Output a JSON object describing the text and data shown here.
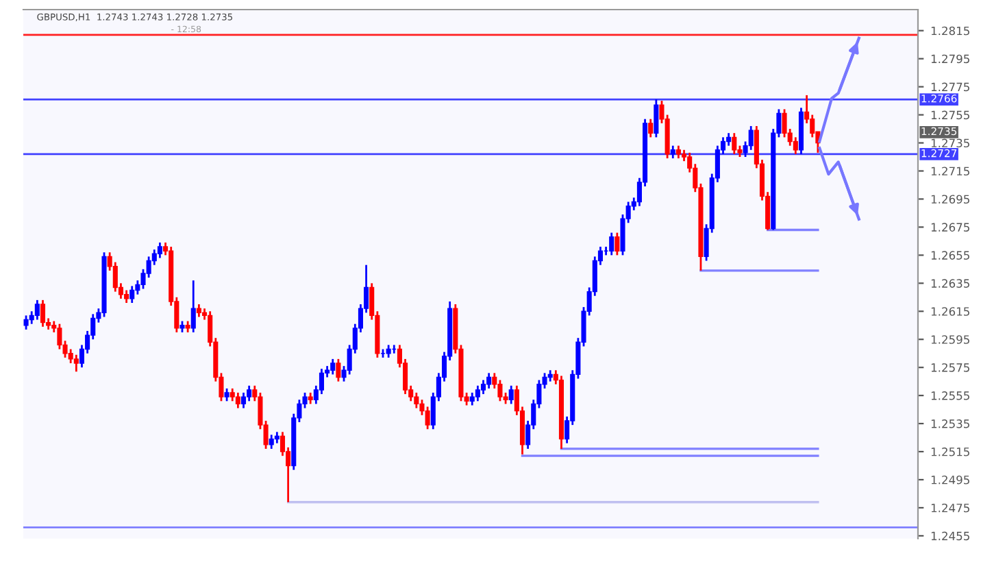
{
  "chart_data": {
    "type": "candlestick",
    "title": "GBPUSD,H1  1.2743 1.2743 1.2728 1.2735",
    "categories": [
      null,
      null,
      null,
      null,
      null,
      null,
      null,
      null,
      null,
      null,
      null,
      null,
      null,
      null,
      null,
      null,
      null,
      null,
      null,
      null,
      null,
      null,
      null,
      null,
      null,
      null,
      null,
      null,
      null,
      null,
      null,
      null,
      null,
      null,
      null,
      null,
      null,
      null,
      null,
      null,
      null,
      null,
      null,
      null,
      null,
      null,
      null,
      null,
      null,
      null,
      null,
      null,
      null,
      null,
      null,
      null,
      null,
      null,
      null,
      null,
      null,
      null,
      null,
      null,
      null,
      null,
      null,
      null,
      null,
      null,
      null,
      null,
      null,
      null,
      null,
      null,
      null,
      null,
      null,
      null,
      null,
      null,
      null,
      null,
      null,
      null,
      null,
      null,
      null,
      null,
      null,
      null,
      null,
      null,
      null,
      null,
      null,
      null,
      null,
      null,
      null,
      null,
      null,
      null,
      null,
      null,
      null,
      null,
      null,
      null,
      null,
      null,
      null,
      null,
      null,
      null,
      null,
      null,
      null,
      null,
      null,
      null,
      null,
      null,
      null,
      null,
      null,
      null,
      null,
      null,
      null,
      null,
      null,
      null,
      null,
      null,
      null,
      null,
      null,
      null,
      null,
      null,
      null
    ],
    "colors": [
      "#0000ff",
      "#0000ff",
      "#0000ff",
      "#ff0000",
      "#ff0000",
      "#ff0000",
      "#ff0000",
      "#ff0000",
      "#ff0000",
      "#ff0000",
      "#0000ff",
      "#0000ff",
      "#0000ff",
      "#0000ff",
      "#0000ff",
      "#ff0000",
      "#ff0000",
      "#ff0000",
      "#ff0000",
      "#0000ff",
      "#0000ff",
      "#0000ff",
      "#0000ff",
      "#0000ff",
      "#0000ff",
      "#ff0000",
      "#ff0000",
      "#ff0000",
      "#0000ff",
      "#ff0000",
      "#0000ff",
      "#ff0000",
      "#ff0000",
      "#ff0000",
      "#ff0000",
      "#ff0000",
      "#0000ff",
      "#ff0000",
      "#ff0000",
      "#0000ff",
      "#0000ff",
      "#ff0000",
      "#ff0000",
      "#ff0000",
      "#0000ff",
      "#0000ff",
      "#ff0000",
      "#ff0000",
      "#0000ff",
      "#0000ff",
      "#0000ff",
      "#ff0000",
      "#0000ff",
      "#0000ff",
      "#0000ff",
      "#0000ff",
      "#ff0000",
      "#0000ff",
      "#0000ff",
      "#0000ff",
      "#0000ff",
      "#0000ff",
      "#ff0000",
      "#ff0000",
      "#0000ff",
      "#0000ff",
      "#0000ff",
      "#ff0000",
      "#ff0000",
      "#ff0000",
      "#ff0000",
      "#ff0000",
      "#ff0000",
      "#0000ff",
      "#0000ff",
      "#0000ff",
      "#0000ff",
      "#ff0000",
      "#ff0000",
      "#ff0000",
      "#0000ff",
      "#0000ff",
      "#0000ff",
      "#0000ff",
      "#ff0000",
      "#ff0000",
      "#ff0000",
      "#0000ff",
      "#ff0000",
      "#ff0000",
      "#0000ff",
      "#0000ff",
      "#0000ff",
      "#0000ff",
      "#0000ff",
      "#ff0000",
      "#ff0000",
      "#0000ff",
      "#0000ff",
      "#0000ff",
      "#0000ff",
      "#0000ff",
      "#0000ff",
      "#0000ff",
      "#0000ff",
      "#0000ff",
      "#ff0000",
      "#0000ff",
      "#0000ff",
      "#0000ff",
      "#0000ff",
      "#0000ff",
      "#ff0000",
      "#0000ff",
      "#ff0000",
      "#ff0000",
      "#0000ff",
      "#ff0000",
      "#ff0000",
      "#ff0000",
      "#ff0000",
      "#ff0000",
      "#0000ff",
      "#0000ff",
      "#0000ff",
      "#0000ff",
      "#0000ff",
      "#ff0000",
      "#ff0000",
      "#0000ff",
      "#0000ff",
      "#ff0000",
      "#ff0000",
      "#ff0000",
      "#0000ff",
      "#0000ff",
      "#ff0000",
      "#ff0000",
      "#ff0000",
      "#0000ff",
      "#ff0000",
      "#ff0000",
      "#ff0000"
    ],
    "ohlc": [
      [
        1.2605,
        1.2612,
        1.2602,
        1.2609
      ],
      [
        1.2609,
        1.2615,
        1.2606,
        1.2612
      ],
      [
        1.2612,
        1.2623,
        1.2609,
        1.262
      ],
      [
        1.262,
        1.2623,
        1.2604,
        1.2607
      ],
      [
        1.2607,
        1.261,
        1.2602,
        1.2605
      ],
      [
        1.2605,
        1.2608,
        1.26,
        1.2603
      ],
      [
        1.2603,
        1.2606,
        1.2588,
        1.2591
      ],
      [
        1.2591,
        1.2594,
        1.2582,
        1.2585
      ],
      [
        1.2585,
        1.2588,
        1.2578,
        1.2581
      ],
      [
        1.2581,
        1.2584,
        1.2572,
        1.2578
      ],
      [
        1.2578,
        1.2591,
        1.2575,
        1.2588
      ],
      [
        1.2588,
        1.2601,
        1.2585,
        1.2598
      ],
      [
        1.2598,
        1.2613,
        1.2595,
        1.261
      ],
      [
        1.261,
        1.2617,
        1.2607,
        1.2614
      ],
      [
        1.2614,
        1.2657,
        1.2611,
        1.2654
      ],
      [
        1.2654,
        1.2657,
        1.2644,
        1.2647
      ],
      [
        1.2647,
        1.265,
        1.2629,
        1.2632
      ],
      [
        1.2632,
        1.2635,
        1.2624,
        1.2627
      ],
      [
        1.2627,
        1.263,
        1.2621,
        1.2624
      ],
      [
        1.2624,
        1.2633,
        1.2621,
        1.263
      ],
      [
        1.263,
        1.2637,
        1.2627,
        1.2634
      ],
      [
        1.2634,
        1.2645,
        1.2631,
        1.2642
      ],
      [
        1.2642,
        1.2654,
        1.2639,
        1.2651
      ],
      [
        1.2651,
        1.2659,
        1.2648,
        1.2656
      ],
      [
        1.2656,
        1.2664,
        1.2653,
        1.2661
      ],
      [
        1.2661,
        1.2664,
        1.2655,
        1.2658
      ],
      [
        1.2658,
        1.2661,
        1.2619,
        1.2622
      ],
      [
        1.2622,
        1.2625,
        1.26,
        1.2603
      ],
      [
        1.2603,
        1.2608,
        1.26,
        1.2605
      ],
      [
        1.2605,
        1.2608,
        1.26,
        1.2603
      ],
      [
        1.2603,
        1.2637,
        1.26,
        1.2617
      ],
      [
        1.2617,
        1.262,
        1.2611,
        1.2614
      ],
      [
        1.2614,
        1.2617,
        1.2609,
        1.2612
      ],
      [
        1.2612,
        1.2615,
        1.259,
        1.2593
      ],
      [
        1.2593,
        1.2596,
        1.2565,
        1.2568
      ],
      [
        1.2568,
        1.2571,
        1.2551,
        1.2554
      ],
      [
        1.2554,
        1.256,
        1.2551,
        1.2557
      ],
      [
        1.2557,
        1.256,
        1.2551,
        1.2554
      ],
      [
        1.2554,
        1.2557,
        1.2546,
        1.2549
      ],
      [
        1.2549,
        1.2557,
        1.2546,
        1.2554
      ],
      [
        1.2554,
        1.2562,
        1.2551,
        1.2559
      ],
      [
        1.2559,
        1.2562,
        1.2551,
        1.2554
      ],
      [
        1.2554,
        1.2557,
        1.2531,
        1.2534
      ],
      [
        1.2534,
        1.2537,
        1.2517,
        1.252
      ],
      [
        1.252,
        1.2527,
        1.2517,
        1.2524
      ],
      [
        1.2524,
        1.2529,
        1.2521,
        1.2526
      ],
      [
        1.2526,
        1.2529,
        1.2512,
        1.2515
      ],
      [
        1.2515,
        1.2518,
        1.2479,
        1.2505
      ],
      [
        1.2505,
        1.2542,
        1.2502,
        1.2539
      ],
      [
        1.2539,
        1.2552,
        1.2536,
        1.2549
      ],
      [
        1.2549,
        1.2557,
        1.2546,
        1.2554
      ],
      [
        1.2554,
        1.2557,
        1.2549,
        1.2552
      ],
      [
        1.2552,
        1.2562,
        1.2549,
        1.2559
      ],
      [
        1.2559,
        1.2574,
        1.2556,
        1.2571
      ],
      [
        1.2571,
        1.2576,
        1.2568,
        1.2573
      ],
      [
        1.2573,
        1.2581,
        1.257,
        1.2578
      ],
      [
        1.2578,
        1.2581,
        1.2565,
        1.2568
      ],
      [
        1.2568,
        1.2576,
        1.2565,
        1.2573
      ],
      [
        1.2573,
        1.2591,
        1.257,
        1.2588
      ],
      [
        1.2588,
        1.2606,
        1.2585,
        1.2603
      ],
      [
        1.2603,
        1.262,
        1.26,
        1.2617
      ],
      [
        1.2617,
        1.2648,
        1.2614,
        1.2632
      ],
      [
        1.2632,
        1.2635,
        1.2609,
        1.2612
      ],
      [
        1.2612,
        1.2615,
        1.2582,
        1.2585
      ],
      [
        1.2585,
        1.2588,
        1.2582,
        1.2585
      ],
      [
        1.2585,
        1.2591,
        1.2582,
        1.2588
      ],
      [
        1.2588,
        1.2591,
        1.2585,
        1.2588
      ],
      [
        1.2588,
        1.2591,
        1.2575,
        1.2578
      ],
      [
        1.2578,
        1.2581,
        1.2556,
        1.2559
      ],
      [
        1.2559,
        1.2562,
        1.2551,
        1.2554
      ],
      [
        1.2554,
        1.2557,
        1.2546,
        1.2549
      ],
      [
        1.2549,
        1.2552,
        1.2541,
        1.2544
      ],
      [
        1.2544,
        1.2547,
        1.2531,
        1.2534
      ],
      [
        1.2534,
        1.2557,
        1.2531,
        1.2554
      ],
      [
        1.2554,
        1.2571,
        1.2551,
        1.2568
      ],
      [
        1.2568,
        1.2586,
        1.2565,
        1.2583
      ],
      [
        1.2583,
        1.2622,
        1.258,
        1.2617
      ],
      [
        1.2617,
        1.262,
        1.2585,
        1.2588
      ],
      [
        1.2588,
        1.2591,
        1.2551,
        1.2554
      ],
      [
        1.2554,
        1.2557,
        1.2548,
        1.2551
      ],
      [
        1.2551,
        1.2557,
        1.2548,
        1.2554
      ],
      [
        1.2554,
        1.2562,
        1.2551,
        1.2559
      ],
      [
        1.2559,
        1.2566,
        1.2556,
        1.2563
      ],
      [
        1.2563,
        1.2571,
        1.256,
        1.2568
      ],
      [
        1.2568,
        1.2571,
        1.256,
        1.2563
      ],
      [
        1.2563,
        1.2566,
        1.2551,
        1.2554
      ],
      [
        1.2554,
        1.2557,
        1.2549,
        1.2552
      ],
      [
        1.2552,
        1.2562,
        1.2549,
        1.2559
      ],
      [
        1.2559,
        1.2562,
        1.2541,
        1.2544
      ],
      [
        1.2544,
        1.2547,
        1.2513,
        1.252
      ],
      [
        1.252,
        1.2537,
        1.2517,
        1.2534
      ],
      [
        1.2534,
        1.2552,
        1.2531,
        1.2549
      ],
      [
        1.2549,
        1.2566,
        1.2546,
        1.2563
      ],
      [
        1.2563,
        1.2571,
        1.256,
        1.2568
      ],
      [
        1.2568,
        1.2573,
        1.2565,
        1.257
      ],
      [
        1.257,
        1.2573,
        1.2563,
        1.2566
      ],
      [
        1.2566,
        1.2569,
        1.2517,
        1.2524
      ],
      [
        1.2524,
        1.254,
        1.2521,
        1.2537
      ],
      [
        1.2537,
        1.2573,
        1.2534,
        1.257
      ],
      [
        1.257,
        1.2596,
        1.2567,
        1.2593
      ],
      [
        1.2593,
        1.2618,
        1.259,
        1.2615
      ],
      [
        1.2615,
        1.2632,
        1.2612,
        1.2629
      ],
      [
        1.2629,
        1.2654,
        1.2626,
        1.2651
      ],
      [
        1.2651,
        1.2661,
        1.2648,
        1.2658
      ],
      [
        1.2658,
        1.2661,
        1.2655,
        1.2658
      ],
      [
        1.2658,
        1.2671,
        1.2655,
        1.2668
      ],
      [
        1.2668,
        1.2671,
        1.2655,
        1.2658
      ],
      [
        1.2658,
        1.2684,
        1.2655,
        1.2681
      ],
      [
        1.2681,
        1.2693,
        1.2678,
        1.269
      ],
      [
        1.269,
        1.2696,
        1.2687,
        1.2693
      ],
      [
        1.2693,
        1.271,
        1.269,
        1.2707
      ],
      [
        1.2707,
        1.2752,
        1.2704,
        1.2749
      ],
      [
        1.2749,
        1.2752,
        1.2739,
        1.2742
      ],
      [
        1.2742,
        1.2766,
        1.2739,
        1.2762
      ],
      [
        1.2762,
        1.2765,
        1.2749,
        1.2752
      ],
      [
        1.2752,
        1.2755,
        1.2724,
        1.2727
      ],
      [
        1.2727,
        1.2733,
        1.2724,
        1.273
      ],
      [
        1.273,
        1.2733,
        1.2724,
        1.2727
      ],
      [
        1.2727,
        1.273,
        1.2722,
        1.2725
      ],
      [
        1.2725,
        1.2728,
        1.2714,
        1.2717
      ],
      [
        1.2717,
        1.272,
        1.27,
        1.2703
      ],
      [
        1.2703,
        1.2706,
        1.2644,
        1.2654
      ],
      [
        1.2654,
        1.2677,
        1.2651,
        1.2674
      ],
      [
        1.2674,
        1.2713,
        1.2671,
        1.271
      ],
      [
        1.271,
        1.2733,
        1.2707,
        1.273
      ],
      [
        1.273,
        1.2739,
        1.2727,
        1.2736
      ],
      [
        1.2736,
        1.2742,
        1.2733,
        1.2739
      ],
      [
        1.2739,
        1.2742,
        1.2727,
        1.273
      ],
      [
        1.273,
        1.2733,
        1.2725,
        1.2728
      ],
      [
        1.2728,
        1.2736,
        1.2725,
        1.2733
      ],
      [
        1.2733,
        1.2747,
        1.273,
        1.2744
      ],
      [
        1.2744,
        1.2747,
        1.2717,
        1.272
      ],
      [
        1.272,
        1.2723,
        1.2694,
        1.2697
      ],
      [
        1.2697,
        1.27,
        1.2673,
        1.2674
      ],
      [
        1.2674,
        1.2745,
        1.2673,
        1.2742
      ],
      [
        1.2742,
        1.2759,
        1.2739,
        1.2756
      ],
      [
        1.2756,
        1.2759,
        1.2739,
        1.2742
      ],
      [
        1.2742,
        1.2745,
        1.2733,
        1.2736
      ],
      [
        1.2736,
        1.2739,
        1.2727,
        1.273
      ],
      [
        1.273,
        1.276,
        1.2727,
        1.2757
      ],
      [
        1.2757,
        1.2769,
        1.2749,
        1.2752
      ],
      [
        1.2752,
        1.2755,
        1.2739,
        1.2742
      ],
      [
        1.2743,
        1.2743,
        1.2728,
        1.2735
      ]
    ],
    "series": [
      {
        "type": "line",
        "color": "#8080ff",
        "values": [
          null,
          null,
          null,
          null,
          null,
          null,
          null,
          null,
          null,
          null,
          null,
          null,
          null,
          null,
          null,
          null,
          null,
          null,
          null,
          null,
          null,
          null,
          null,
          null,
          null,
          null,
          null,
          null,
          null,
          null,
          null,
          null,
          null,
          null,
          null,
          null,
          null,
          null,
          null,
          null,
          null,
          null,
          null,
          null,
          null,
          null,
          null,
          null,
          null,
          null,
          null,
          null,
          null,
          null,
          null,
          null,
          null,
          null,
          null,
          null,
          null,
          null,
          null,
          null,
          null,
          null,
          null,
          null,
          null,
          null,
          null,
          null,
          null,
          null,
          null,
          null,
          null,
          null,
          null,
          null,
          null,
          null,
          null,
          null,
          null,
          null,
          null,
          null,
          null,
          null,
          null,
          null,
          null,
          null,
          null,
          null,
          null,
          null,
          null,
          null,
          null,
          null,
          null,
          null,
          null,
          null,
          null,
          null,
          null,
          null,
          null,
          null,
          null,
          null,
          null,
          null,
          null,
          null,
          null,
          null,
          null,
          null,
          null,
          null,
          null,
          null,
          null,
          null,
          null,
          null,
          null,
          null,
          null,
          1.2673,
          1.2673,
          1.2673,
          1.2673,
          1.2673,
          1.2673,
          1.2673,
          1.2673,
          1.2673,
          1.2673
        ]
      },
      {
        "type": "line",
        "color": "#8080ff",
        "values": [
          null,
          null,
          null,
          null,
          null,
          null,
          null,
          null,
          null,
          null,
          null,
          null,
          null,
          null,
          null,
          null,
          null,
          null,
          null,
          null,
          null,
          null,
          null,
          null,
          null,
          null,
          null,
          null,
          null,
          null,
          null,
          null,
          null,
          null,
          null,
          null,
          null,
          null,
          null,
          null,
          null,
          null,
          null,
          null,
          null,
          null,
          null,
          null,
          null,
          null,
          null,
          null,
          null,
          null,
          null,
          null,
          null,
          null,
          null,
          null,
          null,
          null,
          null,
          null,
          null,
          null,
          null,
          null,
          null,
          null,
          null,
          null,
          null,
          null,
          null,
          null,
          null,
          null,
          null,
          null,
          null,
          null,
          null,
          null,
          null,
          null,
          null,
          null,
          null,
          null,
          null,
          null,
          null,
          null,
          null,
          null,
          null,
          null,
          null,
          null,
          null,
          null,
          null,
          null,
          null,
          null,
          null,
          null,
          null,
          null,
          null,
          null,
          null,
          null,
          null,
          null,
          null,
          null,
          null,
          null,
          null,
          1.2644,
          1.2644,
          1.2644,
          1.2644,
          1.2644,
          1.2644,
          1.2644,
          1.2644,
          1.2644,
          1.2644,
          1.2644,
          1.2644,
          1.2644,
          1.2644,
          1.2644,
          1.2644,
          1.2644,
          1.2644,
          1.2644,
          1.2644,
          1.2644,
          1.2644
        ]
      },
      {
        "type": "line",
        "color": "#8080ff",
        "values": [
          null,
          null,
          null,
          null,
          null,
          null,
          null,
          null,
          null,
          null,
          null,
          null,
          null,
          null,
          null,
          null,
          null,
          null,
          null,
          null,
          null,
          null,
          null,
          null,
          null,
          null,
          null,
          null,
          null,
          null,
          null,
          null,
          null,
          null,
          null,
          null,
          null,
          null,
          null,
          null,
          null,
          null,
          null,
          null,
          null,
          null,
          null,
          null,
          null,
          null,
          null,
          null,
          null,
          null,
          null,
          null,
          null,
          null,
          null,
          null,
          null,
          null,
          null,
          null,
          null,
          null,
          null,
          null,
          null,
          null,
          null,
          null,
          null,
          null,
          null,
          null,
          null,
          null,
          null,
          null,
          null,
          null,
          null,
          null,
          null,
          null,
          null,
          null,
          null,
          null,
          null,
          null,
          null,
          null,
          null,
          null,
          1.2517,
          1.2517,
          1.2517,
          1.2517,
          1.2517,
          1.2517,
          1.2517,
          1.2517,
          1.2517,
          1.2517,
          1.2517,
          1.2517,
          1.2517,
          1.2517,
          1.2517,
          1.2517,
          1.2517,
          1.2517,
          1.2517,
          1.2517,
          1.2517,
          1.2517,
          1.2517,
          1.2517,
          1.2517,
          1.2517,
          1.2517,
          1.2517,
          1.2517,
          1.2517,
          1.2517,
          1.2517,
          1.2517,
          1.2517,
          1.2517,
          1.2517,
          1.2517,
          1.2517,
          1.2517,
          1.2517,
          1.2517,
          1.2517,
          1.2517,
          1.2517,
          1.2517,
          1.2517,
          1.2517
        ]
      },
      {
        "type": "line",
        "color": "#8080ff",
        "values": [
          null,
          null,
          null,
          null,
          null,
          null,
          null,
          null,
          null,
          null,
          null,
          null,
          null,
          null,
          null,
          null,
          null,
          null,
          null,
          null,
          null,
          null,
          null,
          null,
          null,
          null,
          null,
          null,
          null,
          null,
          null,
          null,
          null,
          null,
          null,
          null,
          null,
          null,
          null,
          null,
          null,
          null,
          null,
          null,
          null,
          null,
          null,
          null,
          null,
          null,
          null,
          null,
          null,
          null,
          null,
          null,
          null,
          null,
          null,
          null,
          null,
          null,
          null,
          null,
          null,
          null,
          null,
          null,
          null,
          null,
          null,
          null,
          null,
          null,
          null,
          null,
          null,
          null,
          null,
          null,
          null,
          null,
          null,
          null,
          null,
          null,
          null,
          null,
          null,
          1.2512,
          1.2512,
          1.2512,
          1.2512,
          1.2512,
          1.2512,
          1.2512,
          1.2512,
          1.2512,
          1.2512,
          1.2512,
          1.2512,
          1.2512,
          1.2512,
          1.2512,
          1.2512,
          1.2512,
          1.2512,
          1.2512,
          1.2512,
          1.2512,
          1.2512,
          1.2512,
          1.2512,
          1.2512,
          1.2512,
          1.2512,
          1.2512,
          1.2512,
          1.2512,
          1.2512,
          1.2512,
          1.2512,
          1.2512,
          1.2512,
          1.2512,
          1.2512,
          1.2512,
          1.2512,
          1.2512,
          1.2512,
          1.2512,
          1.2512,
          1.2512,
          1.2512,
          1.2512,
          1.2512,
          1.2512,
          1.2512,
          1.2512,
          1.2512,
          1.2512,
          1.2512,
          1.2512
        ]
      },
      {
        "type": "line",
        "color": "#c0c0f0",
        "values": [
          null,
          null,
          null,
          null,
          null,
          null,
          null,
          null,
          null,
          null,
          null,
          null,
          null,
          null,
          null,
          null,
          null,
          null,
          null,
          null,
          null,
          null,
          null,
          null,
          null,
          null,
          null,
          null,
          null,
          null,
          null,
          null,
          null,
          null,
          null,
          null,
          null,
          null,
          null,
          null,
          null,
          null,
          null,
          null,
          null,
          null,
          null,
          1.2479,
          1.2479,
          1.2479,
          1.2479,
          1.2479,
          1.2479,
          1.2479,
          1.2479,
          1.2479,
          1.2479,
          1.2479,
          1.2479,
          1.2479,
          1.2479,
          1.2479,
          1.2479,
          1.2479,
          1.2479,
          1.2479,
          1.2479,
          1.2479,
          1.2479,
          1.2479,
          1.2479,
          1.2479,
          1.2479,
          1.2479,
          1.2479,
          1.2479,
          1.2479,
          1.2479,
          1.2479,
          1.2479,
          1.2479,
          1.2479,
          1.2479,
          1.2479,
          1.2479,
          1.2479,
          1.2479,
          1.2479,
          1.2479,
          1.2479,
          1.2479,
          1.2479,
          1.2479,
          1.2479,
          1.2479,
          1.2479,
          1.2479,
          1.2479,
          1.2479,
          1.2479,
          1.2479,
          1.2479,
          1.2479,
          1.2479,
          1.2479,
          1.2479,
          1.2479,
          1.2479,
          1.2479,
          1.2479,
          1.2479,
          1.2479,
          1.2479,
          1.2479,
          1.2479,
          1.2479,
          1.2479,
          1.2479,
          1.2479,
          1.2479,
          1.2479,
          1.2479,
          1.2479,
          1.2479,
          1.2479,
          1.2479,
          1.2479,
          1.2479,
          1.2479,
          1.2479,
          1.2479,
          1.2479,
          1.2479,
          1.2479,
          1.2479,
          1.2479,
          1.2479,
          1.2479,
          1.2479,
          1.2479,
          1.2479,
          1.2479,
          1.2479
        ]
      }
    ],
    "ref_lines": [
      {
        "axis": "y",
        "value": 1.2812,
        "color": "#ff2020"
      },
      {
        "axis": "y",
        "value": 1.2766,
        "label": "1.2766",
        "color": "#4040ff"
      },
      {
        "axis": "y",
        "value": 1.2727,
        "label": "1.2727",
        "color": "#4040ff"
      },
      {
        "axis": "y",
        "value": 1.2461,
        "color": "#8080ff"
      }
    ],
    "annotations": [
      "- 12:58",
      "1.2735"
    ],
    "ylim": [
      1.2453,
      1.283
    ],
    "yticks": [
      1.2815,
      1.2795,
      1.2775,
      1.2755,
      1.2735,
      1.2715,
      1.2695,
      1.2675,
      1.2655,
      1.2635,
      1.2615,
      1.2595,
      1.2575,
      1.2555,
      1.2535,
      1.2515,
      1.2495,
      1.2475,
      1.2455
    ],
    "grid": false
  }
}
